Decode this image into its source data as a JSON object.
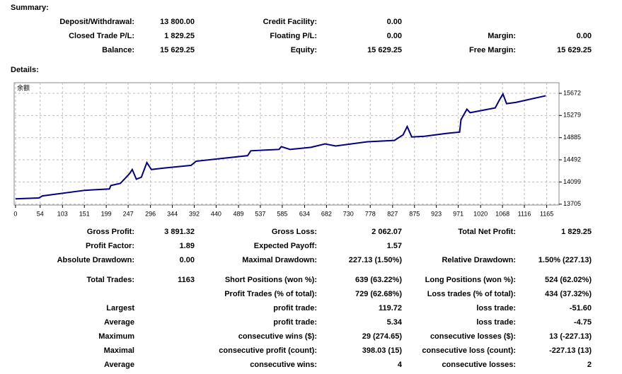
{
  "summary": {
    "title": "Summary:",
    "rows": [
      [
        {
          "label": "Deposit/Withdrawal:",
          "value": "13 800.00"
        },
        {
          "label": "Credit Facility:",
          "value": "0.00"
        },
        null
      ],
      [
        {
          "label": "Closed Trade P/L:",
          "value": "1 829.25"
        },
        {
          "label": "Floating P/L:",
          "value": "0.00"
        },
        {
          "label": "Margin:",
          "value": "0.00"
        }
      ],
      [
        {
          "label": "Balance:",
          "value": "15 629.25"
        },
        {
          "label": "Equity:",
          "value": "15 629.25"
        },
        {
          "label": "Free Margin:",
          "value": "15 629.25"
        }
      ]
    ]
  },
  "details": {
    "title": "Details:",
    "groups": [
      {
        "rows": [
          [
            {
              "label": "Gross Profit:",
              "value": "3 891.32"
            },
            {
              "label": "Gross Loss:",
              "value": "2 062.07"
            },
            {
              "label": "Total Net Profit:",
              "value": "1 829.25"
            }
          ],
          [
            {
              "label": "Profit Factor:",
              "value": "1.89"
            },
            {
              "label": "Expected Payoff:",
              "value": "1.57"
            },
            null
          ],
          [
            {
              "label": "Absolute Drawdown:",
              "value": "0.00"
            },
            {
              "label": "Maximal Drawdown:",
              "value": "227.13 (1.50%)"
            },
            {
              "label": "Relative Drawdown:",
              "value": "1.50% (227.13)"
            }
          ]
        ]
      },
      {
        "rows": [
          [
            {
              "label": "Total Trades:",
              "value": "1163"
            },
            {
              "label": "Short Positions (won %):",
              "value": "639 (63.22%)"
            },
            {
              "label": "Long Positions (won %):",
              "value": "524 (62.02%)"
            }
          ],
          [
            null,
            {
              "label": "Profit Trades (% of total):",
              "value": "729 (62.68%)"
            },
            {
              "label": "Loss trades (% of total):",
              "value": "434 (37.32%)"
            }
          ],
          [
            {
              "label": "Largest"
            },
            {
              "label": "profit trade:",
              "value": "119.72"
            },
            {
              "label": "loss trade:",
              "value": "-51.60"
            }
          ],
          [
            {
              "label": "Average"
            },
            {
              "label": "profit trade:",
              "value": "5.34"
            },
            {
              "label": "loss trade:",
              "value": "-4.75"
            }
          ],
          [
            {
              "label": "Maximum"
            },
            {
              "label": "consecutive wins ($):",
              "value": "29 (274.65)"
            },
            {
              "label": "consecutive losses ($):",
              "value": "13 (-227.13)"
            }
          ],
          [
            {
              "label": "Maximal"
            },
            {
              "label": "consecutive profit (count):",
              "value": "398.03 (15)"
            },
            {
              "label": "consecutive loss (count):",
              "value": "-227.13 (13)"
            }
          ],
          [
            {
              "label": "Average"
            },
            {
              "label": "consecutive wins:",
              "value": "4"
            },
            {
              "label": "consecutive losses:",
              "value": "2"
            }
          ]
        ]
      }
    ]
  },
  "chart_data": {
    "type": "line",
    "title": "余额",
    "x": [
      0,
      51,
      59,
      152,
      206,
      209,
      230,
      250,
      256,
      265,
      276,
      288,
      298,
      323,
      385,
      396,
      509,
      516,
      578,
      583,
      602,
      648,
      679,
      702,
      772,
      831,
      850,
      859,
      869,
      897,
      943,
      974,
      977,
      990,
      997,
      1052,
      1061,
      1069,
      1077,
      1098,
      1163
    ],
    "series": [
      {
        "color": "#000080",
        "values": [
          13800,
          13815,
          13852,
          13951,
          13975,
          14037,
          14074,
          14246,
          14320,
          14148,
          14184,
          14443,
          14320,
          14344,
          14394,
          14467,
          14566,
          14652,
          14677,
          14726,
          14677,
          14714,
          14775,
          14738,
          14812,
          14836,
          14935,
          15082,
          14898,
          14910,
          14959,
          14984,
          15205,
          15390,
          15328,
          15414,
          15549,
          15660,
          15488,
          15512,
          15629
        ]
      }
    ],
    "xlim": [
      -3,
      1192
    ],
    "ylim": [
      13690,
      15860
    ],
    "xticks": [
      0,
      54,
      103,
      151,
      199,
      247,
      296,
      344,
      392,
      440,
      489,
      537,
      585,
      634,
      682,
      730,
      778,
      827,
      875,
      923,
      971,
      1020,
      1068,
      1116,
      1165
    ],
    "yticks": [
      13705,
      14099,
      14492,
      14885,
      15279,
      15672
    ],
    "grid": true
  }
}
